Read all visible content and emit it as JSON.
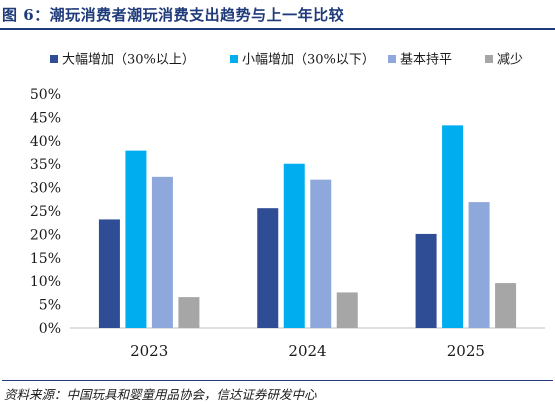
{
  "header": {
    "title": "图 6：潮玩消费者潮玩消费支出趋势与上一年比较"
  },
  "footer": {
    "source": "资料来源：中国玩具和婴童用品协会，信达证券研发中心"
  },
  "chart_data": {
    "type": "bar",
    "categories": [
      "2023",
      "2024",
      "2025"
    ],
    "series": [
      {
        "name": "大幅增加（30%以上）",
        "color": "#2e4d94",
        "values": [
          23.2,
          25.6,
          20.1
        ]
      },
      {
        "name": "小幅增加（30%以下）",
        "color": "#00aeef",
        "values": [
          37.9,
          35.1,
          43.3
        ]
      },
      {
        "name": "基本持平",
        "color": "#8fa8dc",
        "values": [
          32.3,
          31.7,
          26.9
        ]
      },
      {
        "name": "减少",
        "color": "#a6a6a6",
        "values": [
          6.6,
          7.6,
          9.6
        ]
      }
    ],
    "ylim": [
      0,
      50
    ],
    "yticks": [
      "0%",
      "5%",
      "10%",
      "15%",
      "20%",
      "25%",
      "30%",
      "35%",
      "40%",
      "45%",
      "50%"
    ],
    "grid": false,
    "legend_position": "top"
  }
}
